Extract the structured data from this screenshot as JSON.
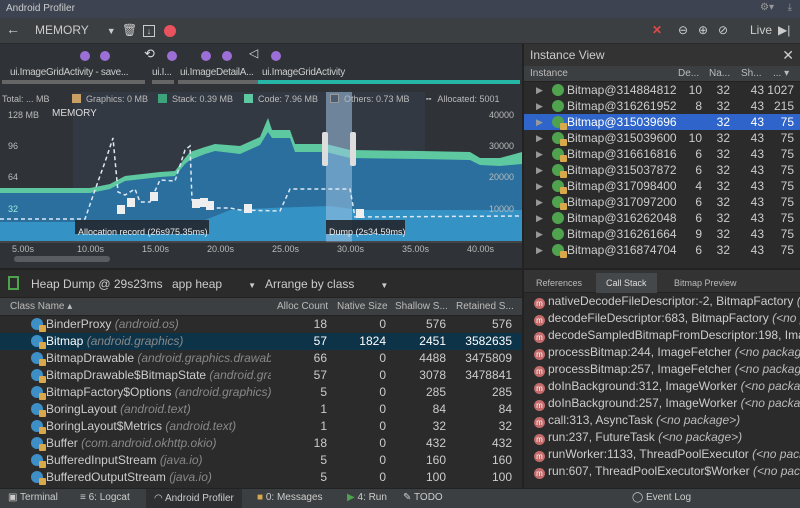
{
  "window": {
    "title": "Android Profiler"
  },
  "toolbar": {
    "profiler_select": "MEMORY",
    "live_label": "Live"
  },
  "timeline": {
    "activities": [
      "ui.ImageGridActivity - save...",
      "ui.I...",
      "ui.ImageDetailA...",
      "ui.ImageGridActivity"
    ],
    "stage_label": "MEMORY",
    "legend": {
      "total": "Total: ... MB",
      "graphics": "Graphics: 0 MB",
      "stack": "Stack: 0.39 MB",
      "code": "Code: 7.96 MB",
      "others": "Others:  0.73 MB",
      "allocated": "Allocated:  5001"
    },
    "left_axis": [
      "128 MB",
      "96",
      "64",
      "32"
    ],
    "right_axis": [
      "40000",
      "30000",
      "20000",
      "10000"
    ],
    "x_axis": [
      "5.00s",
      "10.00s",
      "15.00s",
      "20.00s",
      "25.00s",
      "30.00s",
      "35.00s",
      "40.00s"
    ],
    "allocation_record": "Allocation record (26s975.35ms)",
    "dump": "Dump (2s34.59ms)",
    "colors": {
      "graphics": "#c8a064",
      "stack": "#3da37a",
      "code": "#5ec9a0",
      "others": "#4b5d70",
      "java": "#2c7fb0",
      "native": "#3d9fd1",
      "accent": "#26b6a6"
    }
  },
  "instance_view": {
    "title": "Instance View",
    "columns": [
      "Instance",
      "De...",
      "Na...",
      "Sh...",
      "... ▾"
    ],
    "rows": [
      {
        "name": "Bitmap@314884812",
        "depth": "10",
        "native": "32",
        "shallow": "43",
        "retained": "1027",
        "icon": "instance"
      },
      {
        "name": "Bitmap@316261952",
        "depth": "8",
        "native": "32",
        "shallow": "43",
        "retained": "215",
        "icon": "instance"
      },
      {
        "name": "Bitmap@315039696",
        "depth": "",
        "native": "32",
        "shallow": "43",
        "retained": "75",
        "icon": "class",
        "selected": true
      },
      {
        "name": "Bitmap@315039600",
        "depth": "10",
        "native": "32",
        "shallow": "43",
        "retained": "75",
        "icon": "class"
      },
      {
        "name": "Bitmap@316616816",
        "depth": "6",
        "native": "32",
        "shallow": "43",
        "retained": "75",
        "icon": "class"
      },
      {
        "name": "Bitmap@315037872",
        "depth": "6",
        "native": "32",
        "shallow": "43",
        "retained": "75",
        "icon": "class"
      },
      {
        "name": "Bitmap@317098400",
        "depth": "4",
        "native": "32",
        "shallow": "43",
        "retained": "75",
        "icon": "class"
      },
      {
        "name": "Bitmap@317097200",
        "depth": "6",
        "native": "32",
        "shallow": "43",
        "retained": "75",
        "icon": "class"
      },
      {
        "name": "Bitmap@316262048",
        "depth": "6",
        "native": "32",
        "shallow": "43",
        "retained": "75",
        "icon": "instance"
      },
      {
        "name": "Bitmap@316261664",
        "depth": "9",
        "native": "32",
        "shallow": "43",
        "retained": "75",
        "icon": "instance"
      },
      {
        "name": "Bitmap@316874704",
        "depth": "6",
        "native": "32",
        "shallow": "43",
        "retained": "75",
        "icon": "class"
      }
    ]
  },
  "heap": {
    "dump_label": "Heap Dump @ 29s23ms",
    "heap_select": "app heap",
    "arrange_select": "Arrange by class",
    "columns": [
      "Class Name ▴",
      "Alloc Count",
      "Native Size",
      "Shallow S...",
      "Retained S..."
    ],
    "rows": [
      {
        "name": "BinderProxy",
        "pkg": "(android.os)",
        "alloc": "18",
        "native": "0",
        "shallow": "576",
        "retained": "576"
      },
      {
        "name": "Bitmap",
        "pkg": "(android.graphics)",
        "alloc": "57",
        "native": "1824",
        "shallow": "2451",
        "retained": "3582635",
        "selected": true
      },
      {
        "name": "BitmapDrawable",
        "pkg": "(android.graphics.drawable)",
        "alloc": "66",
        "native": "0",
        "shallow": "4488",
        "retained": "3475809"
      },
      {
        "name": "BitmapDrawable$BitmapState",
        "pkg": "(android.graphics)",
        "alloc": "57",
        "native": "0",
        "shallow": "3078",
        "retained": "3478841"
      },
      {
        "name": "BitmapFactory$Options",
        "pkg": "(android.graphics)",
        "alloc": "5",
        "native": "0",
        "shallow": "285",
        "retained": "285"
      },
      {
        "name": "BoringLayout",
        "pkg": "(android.text)",
        "alloc": "1",
        "native": "0",
        "shallow": "84",
        "retained": "84"
      },
      {
        "name": "BoringLayout$Metrics",
        "pkg": "(android.text)",
        "alloc": "1",
        "native": "0",
        "shallow": "32",
        "retained": "32"
      },
      {
        "name": "Buffer",
        "pkg": "(com.android.okhttp.okio)",
        "alloc": "18",
        "native": "0",
        "shallow": "432",
        "retained": "432"
      },
      {
        "name": "BufferedInputStream",
        "pkg": "(java.io)",
        "alloc": "5",
        "native": "0",
        "shallow": "160",
        "retained": "160"
      },
      {
        "name": "BufferedOutputStream",
        "pkg": "(java.io)",
        "alloc": "5",
        "native": "0",
        "shallow": "100",
        "retained": "100"
      }
    ]
  },
  "details": {
    "tabs": [
      "References",
      "Call Stack",
      "Bitmap Preview"
    ],
    "frames": [
      {
        "method": "nativeDecodeFileDescriptor:-2, BitmapFactory",
        "pkg": "(<no package>)"
      },
      {
        "method": "decodeFileDescriptor:683, BitmapFactory",
        "pkg": "(<no package>)"
      },
      {
        "method": "decodeSampledBitmapFromDescriptor:198, ImageResizer",
        "pkg": "(<no package>)"
      },
      {
        "method": "processBitmap:244, ImageFetcher",
        "pkg": "(<no package>)"
      },
      {
        "method": "processBitmap:257, ImageFetcher",
        "pkg": "(<no package>)"
      },
      {
        "method": "doInBackground:312, ImageWorker",
        "pkg": "(<no package>)"
      },
      {
        "method": "doInBackground:257, ImageWorker",
        "pkg": "(<no package>)"
      },
      {
        "method": "call:313, AsyncTask",
        "pkg": "(<no package>)"
      },
      {
        "method": "run:237, FutureTask",
        "pkg": "(<no package>)"
      },
      {
        "method": "runWorker:1133, ThreadPoolExecutor",
        "pkg": "(<no package>)"
      },
      {
        "method": "run:607, ThreadPoolExecutor$Worker",
        "pkg": "(<no package>)"
      }
    ]
  },
  "bottom_bar": [
    "Terminal",
    "6: Logcat",
    "Android Profiler",
    "0: Messages",
    "4: Run",
    "TODO",
    "Event Log"
  ]
}
